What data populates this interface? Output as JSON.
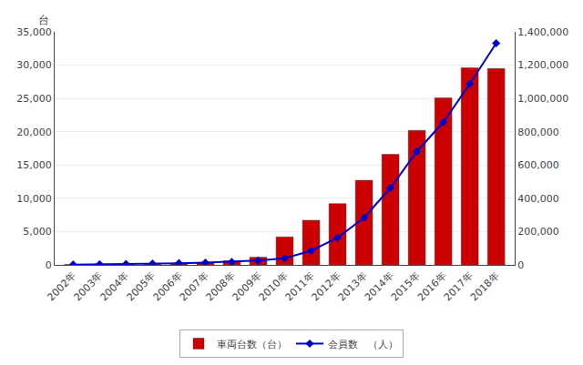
{
  "chart_data": {
    "type": "bar",
    "ylabel": "台",
    "categories": [
      "2002年",
      "2003年",
      "2004年",
      "2005年",
      "2006年",
      "2007年",
      "2008年",
      "2009年",
      "2010年",
      "2011年",
      "2012年",
      "2013年",
      "2014年",
      "2015年",
      "2016年",
      "2017年",
      "2018年"
    ],
    "series": [
      {
        "name": "車両台数（台）",
        "type": "bar",
        "color": "#cc0000",
        "values": [
          60,
          80,
          120,
          160,
          200,
          340,
          620,
          1150,
          4200,
          6700,
          9200,
          12700,
          16600,
          20200,
          25100,
          29600,
          29500
        ]
      },
      {
        "name": "会員数　（人）",
        "type": "line",
        "color": "#0000cc",
        "marker": "diamond",
        "axis": "y2",
        "values": [
          2000,
          3200,
          5000,
          7500,
          10000,
          14000,
          18000,
          26000,
          40000,
          85000,
          163000,
          283000,
          462000,
          681000,
          857000,
          1087000,
          1332000
        ]
      }
    ],
    "ylim": [
      0,
      35000
    ],
    "yticks": [
      0,
      {
        "value": 5000,
        "label": "5,000"
      },
      {
        "value": 10000,
        "label": "10,000"
      },
      {
        "value": 15000,
        "label": "15,000"
      },
      {
        "value": 20000,
        "label": "20,000"
      },
      {
        "value": 25000,
        "label": "25,000"
      },
      {
        "value": 30000,
        "label": "30,000"
      },
      {
        "value": 35000,
        "label": "35,000"
      }
    ],
    "y2lim": [
      0,
      1400000
    ],
    "y2ticks": [
      0,
      {
        "value": 200000,
        "label": "200,000"
      },
      {
        "value": 400000,
        "label": "400,000"
      },
      {
        "value": 600000,
        "label": "600,000"
      },
      {
        "value": 800000,
        "label": "800,000"
      },
      {
        "value": 1000000,
        "label": "1,000,000"
      },
      {
        "value": 1200000,
        "label": "1,200,000"
      },
      {
        "value": 1400000,
        "label": "1,400,000"
      }
    ],
    "grid": true,
    "legend": "bottom"
  }
}
